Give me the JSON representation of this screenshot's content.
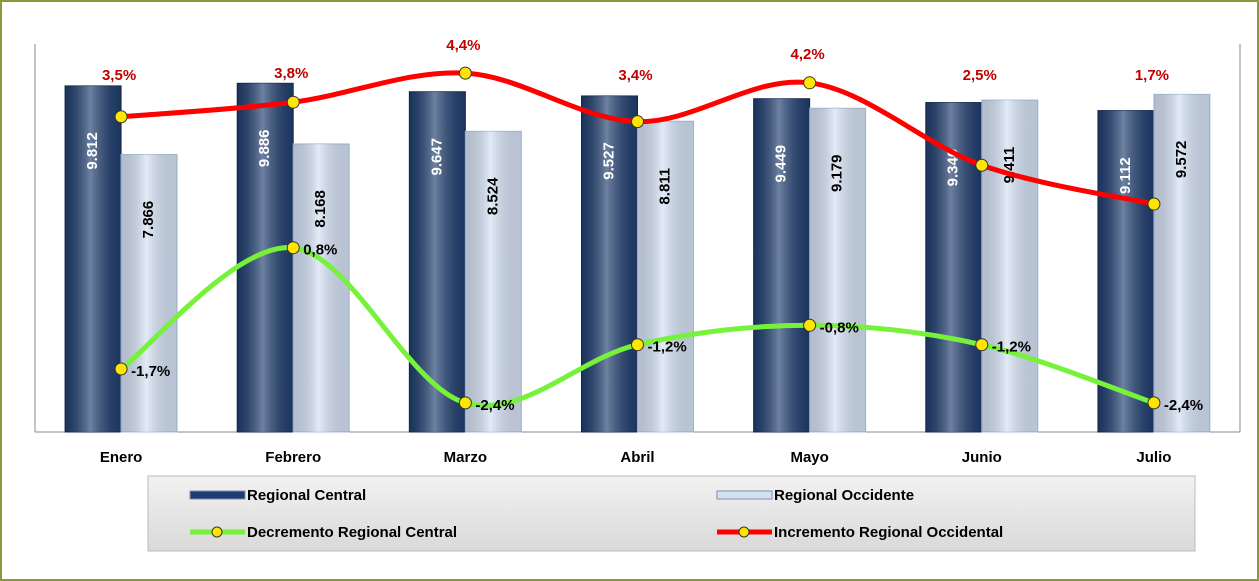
{
  "chart_data": {
    "type": "bar",
    "categories": [
      "Enero",
      "Febrero",
      "Marzo",
      "Abril",
      "Mayo",
      "Junio",
      "Julio"
    ],
    "ylim": [
      0,
      11000
    ],
    "y2lim": [
      -3.0,
      5.0
    ],
    "series": [
      {
        "name": "Regional Central",
        "type": "bar",
        "color": "#1f3d6e",
        "values": [
          9812,
          9886,
          9647,
          9527,
          9449,
          9340,
          9112
        ],
        "value_labels": [
          "9.812",
          "9.886",
          "9.647",
          "9.527",
          "9.449",
          "9.340",
          "9.112"
        ]
      },
      {
        "name": "Regional Occidente",
        "type": "bar",
        "color": "#d3e0f3",
        "values": [
          7866,
          8168,
          8524,
          8811,
          9179,
          9411,
          9572
        ],
        "value_labels": [
          "7.866",
          "8.168",
          "8.524",
          "8.811",
          "9.179",
          "9.411",
          "9.572"
        ]
      },
      {
        "name": "Decremento Regional Central",
        "type": "line",
        "axis": "y2",
        "color": "#77f23a",
        "values": [
          -1.7,
          0.8,
          -2.4,
          -1.2,
          -0.8,
          -1.2,
          -2.4
        ],
        "value_labels": [
          "-1,7%",
          "0,8%",
          "-2,4%",
          "-1,2%",
          "-0,8%",
          "-1,2%",
          "-2,4%"
        ]
      },
      {
        "name": "Incremento Regional Occidental",
        "type": "line",
        "axis": "y2",
        "color": "#ff0000",
        "values": [
          3.5,
          3.8,
          4.4,
          3.4,
          4.2,
          2.5,
          1.7
        ],
        "value_labels": [
          "3,5%",
          "3,8%",
          "4,4%",
          "3,4%",
          "4,2%",
          "2,5%",
          "1,7%"
        ]
      }
    ]
  }
}
